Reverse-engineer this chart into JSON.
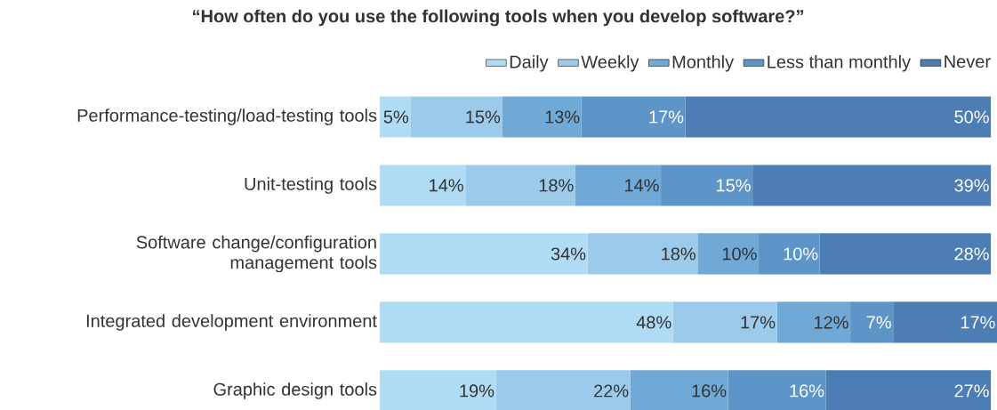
{
  "chart_data": {
    "type": "bar",
    "orientation": "horizontal",
    "stacked": true,
    "title": "“How often do you use the following tools when you develop software?”",
    "categories": [
      "Performance-testing/load-testing tools",
      "Unit-testing tools",
      "Software change/configuration management tools",
      "Integrated development environment",
      "Graphic design tools"
    ],
    "series": [
      {
        "name": "Daily",
        "color": "#b0dbf5",
        "values": [
          5,
          14,
          34,
          48,
          19
        ],
        "value_labels": [
          "5%",
          "14%",
          "34%",
          "48%",
          "19%"
        ]
      },
      {
        "name": "Weekly",
        "color": "#9bcaea",
        "values": [
          15,
          18,
          18,
          17,
          22
        ],
        "value_labels": [
          "15%",
          "18%",
          "18%",
          "17%",
          "22%"
        ]
      },
      {
        "name": "Monthly",
        "color": "#70a8d6",
        "values": [
          13,
          14,
          10,
          12,
          16
        ],
        "value_labels": [
          "13%",
          "14%",
          "10%",
          "12%",
          "16%"
        ]
      },
      {
        "name": "Less than monthly",
        "color": "#5e95c9",
        "values": [
          17,
          15,
          10,
          7,
          16
        ],
        "value_labels": [
          "17%",
          "15%",
          "10%",
          "7%",
          "16%"
        ]
      },
      {
        "name": "Never",
        "color": "#4d7db5",
        "values": [
          50,
          39,
          28,
          17,
          27
        ],
        "value_labels": [
          "50%",
          "39%",
          "28%",
          "17%",
          "27%"
        ]
      }
    ],
    "tick_labels": "y",
    "legend": "top right"
  }
}
